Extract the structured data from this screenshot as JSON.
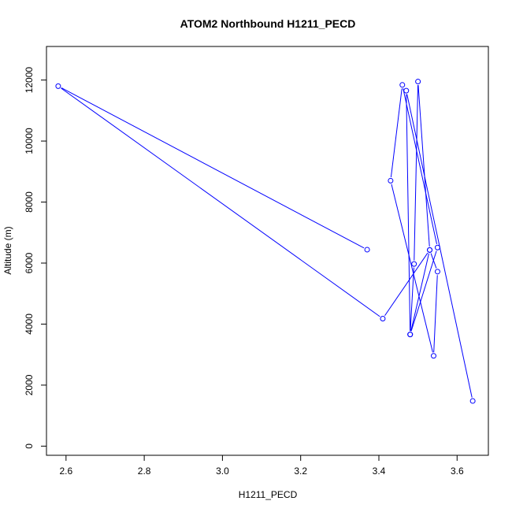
{
  "chart_data": {
    "type": "line",
    "title": "ATOM2 Northbound H1211_PECD",
    "xlabel": "H1211_PECD",
    "ylabel": "Altitude (m)",
    "xlim": [
      2.55,
      3.68
    ],
    "ylim": [
      -300,
      13100
    ],
    "x_ticks": [
      2.6,
      2.8,
      3.0,
      3.2,
      3.4,
      3.6
    ],
    "x_tick_labels": [
      "2.6",
      "2.8",
      "3.0",
      "3.2",
      "3.4",
      "3.6"
    ],
    "y_ticks": [
      0,
      2000,
      4000,
      6000,
      8000,
      10000,
      12000
    ],
    "y_tick_labels": [
      "0",
      "2000",
      "4000",
      "6000",
      "8000",
      "10000",
      "12000"
    ],
    "series": [
      {
        "color": "#0000ff",
        "x": [
          3.37,
          2.58,
          3.41,
          3.53,
          3.48,
          3.49,
          3.5,
          3.53,
          3.55,
          3.54,
          3.43,
          3.46,
          3.55,
          3.48,
          3.47,
          3.64
        ],
        "y": [
          6440,
          11800,
          4180,
          6430,
          3660,
          5970,
          11950,
          6430,
          5720,
          2960,
          8700,
          11840,
          6510,
          3660,
          11650,
          1480
        ]
      }
    ]
  }
}
